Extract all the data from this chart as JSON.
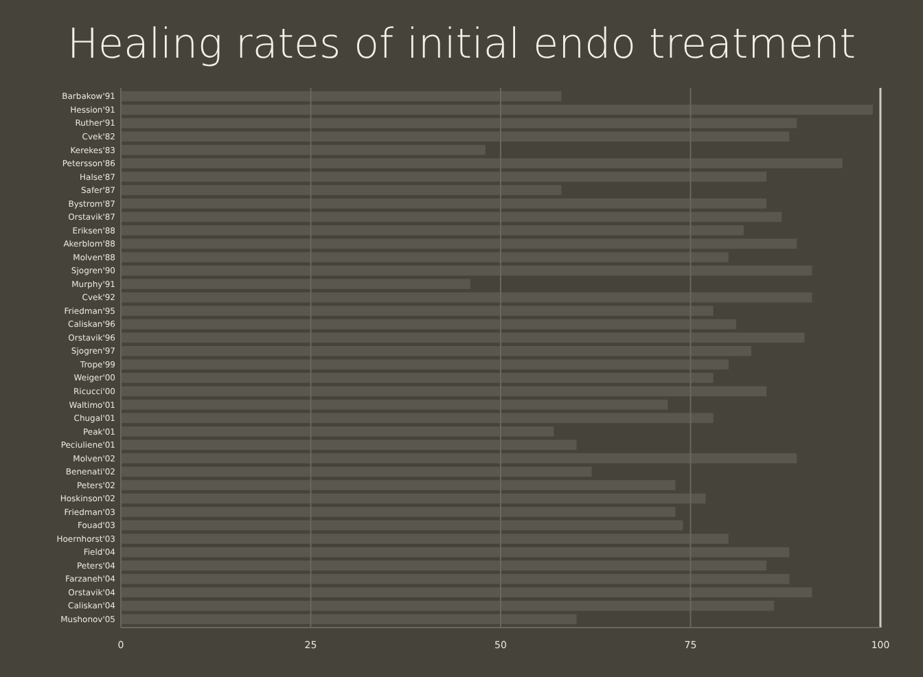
{
  "chart_data": {
    "type": "bar",
    "orientation": "horizontal",
    "title": "Healing rates of initial endo treatment",
    "categories": [
      "Barbakow'91",
      "Hession'91",
      "Ruther'91",
      "Cvek'82",
      "Kerekes'83",
      "Petersson'86",
      "Halse'87",
      "Safer'87",
      "Bystrom'87",
      "Orstavik'87",
      "Eriksen'88",
      "Akerblom'88",
      "Molven'88",
      "Sjogren'90",
      "Murphy'91",
      "Cvek'92",
      "Friedman'95",
      "Caliskan'96",
      "Orstavik'96",
      "Sjogren'97",
      "Trope'99",
      "Weiger'00",
      "Ricucci'00",
      "Waltimo'01",
      "Chugal'01",
      "Peak'01",
      "Peciuliene'01",
      "Molven'02",
      "Benenati'02",
      "Peters'02",
      "Hoskinson'02",
      "Friedman'03",
      "Fouad'03",
      "Hoernhorst'03",
      "Field'04",
      "Peters'04",
      "Farzaneh'04",
      "Orstavik'04",
      "Caliskan'04",
      "Mushonov'05"
    ],
    "values": [
      58,
      99,
      89,
      88,
      48,
      95,
      85,
      58,
      85,
      87,
      82,
      89,
      80,
      91,
      46,
      91,
      78,
      81,
      90,
      83,
      80,
      78,
      85,
      72,
      78,
      57,
      60,
      89,
      62,
      73,
      77,
      73,
      74,
      80,
      88,
      85,
      88,
      91,
      86,
      60
    ],
    "color": "#5a574e",
    "xlim": [
      0,
      100
    ],
    "xticks": [
      0,
      25,
      50,
      75,
      100
    ],
    "grid": "x"
  }
}
